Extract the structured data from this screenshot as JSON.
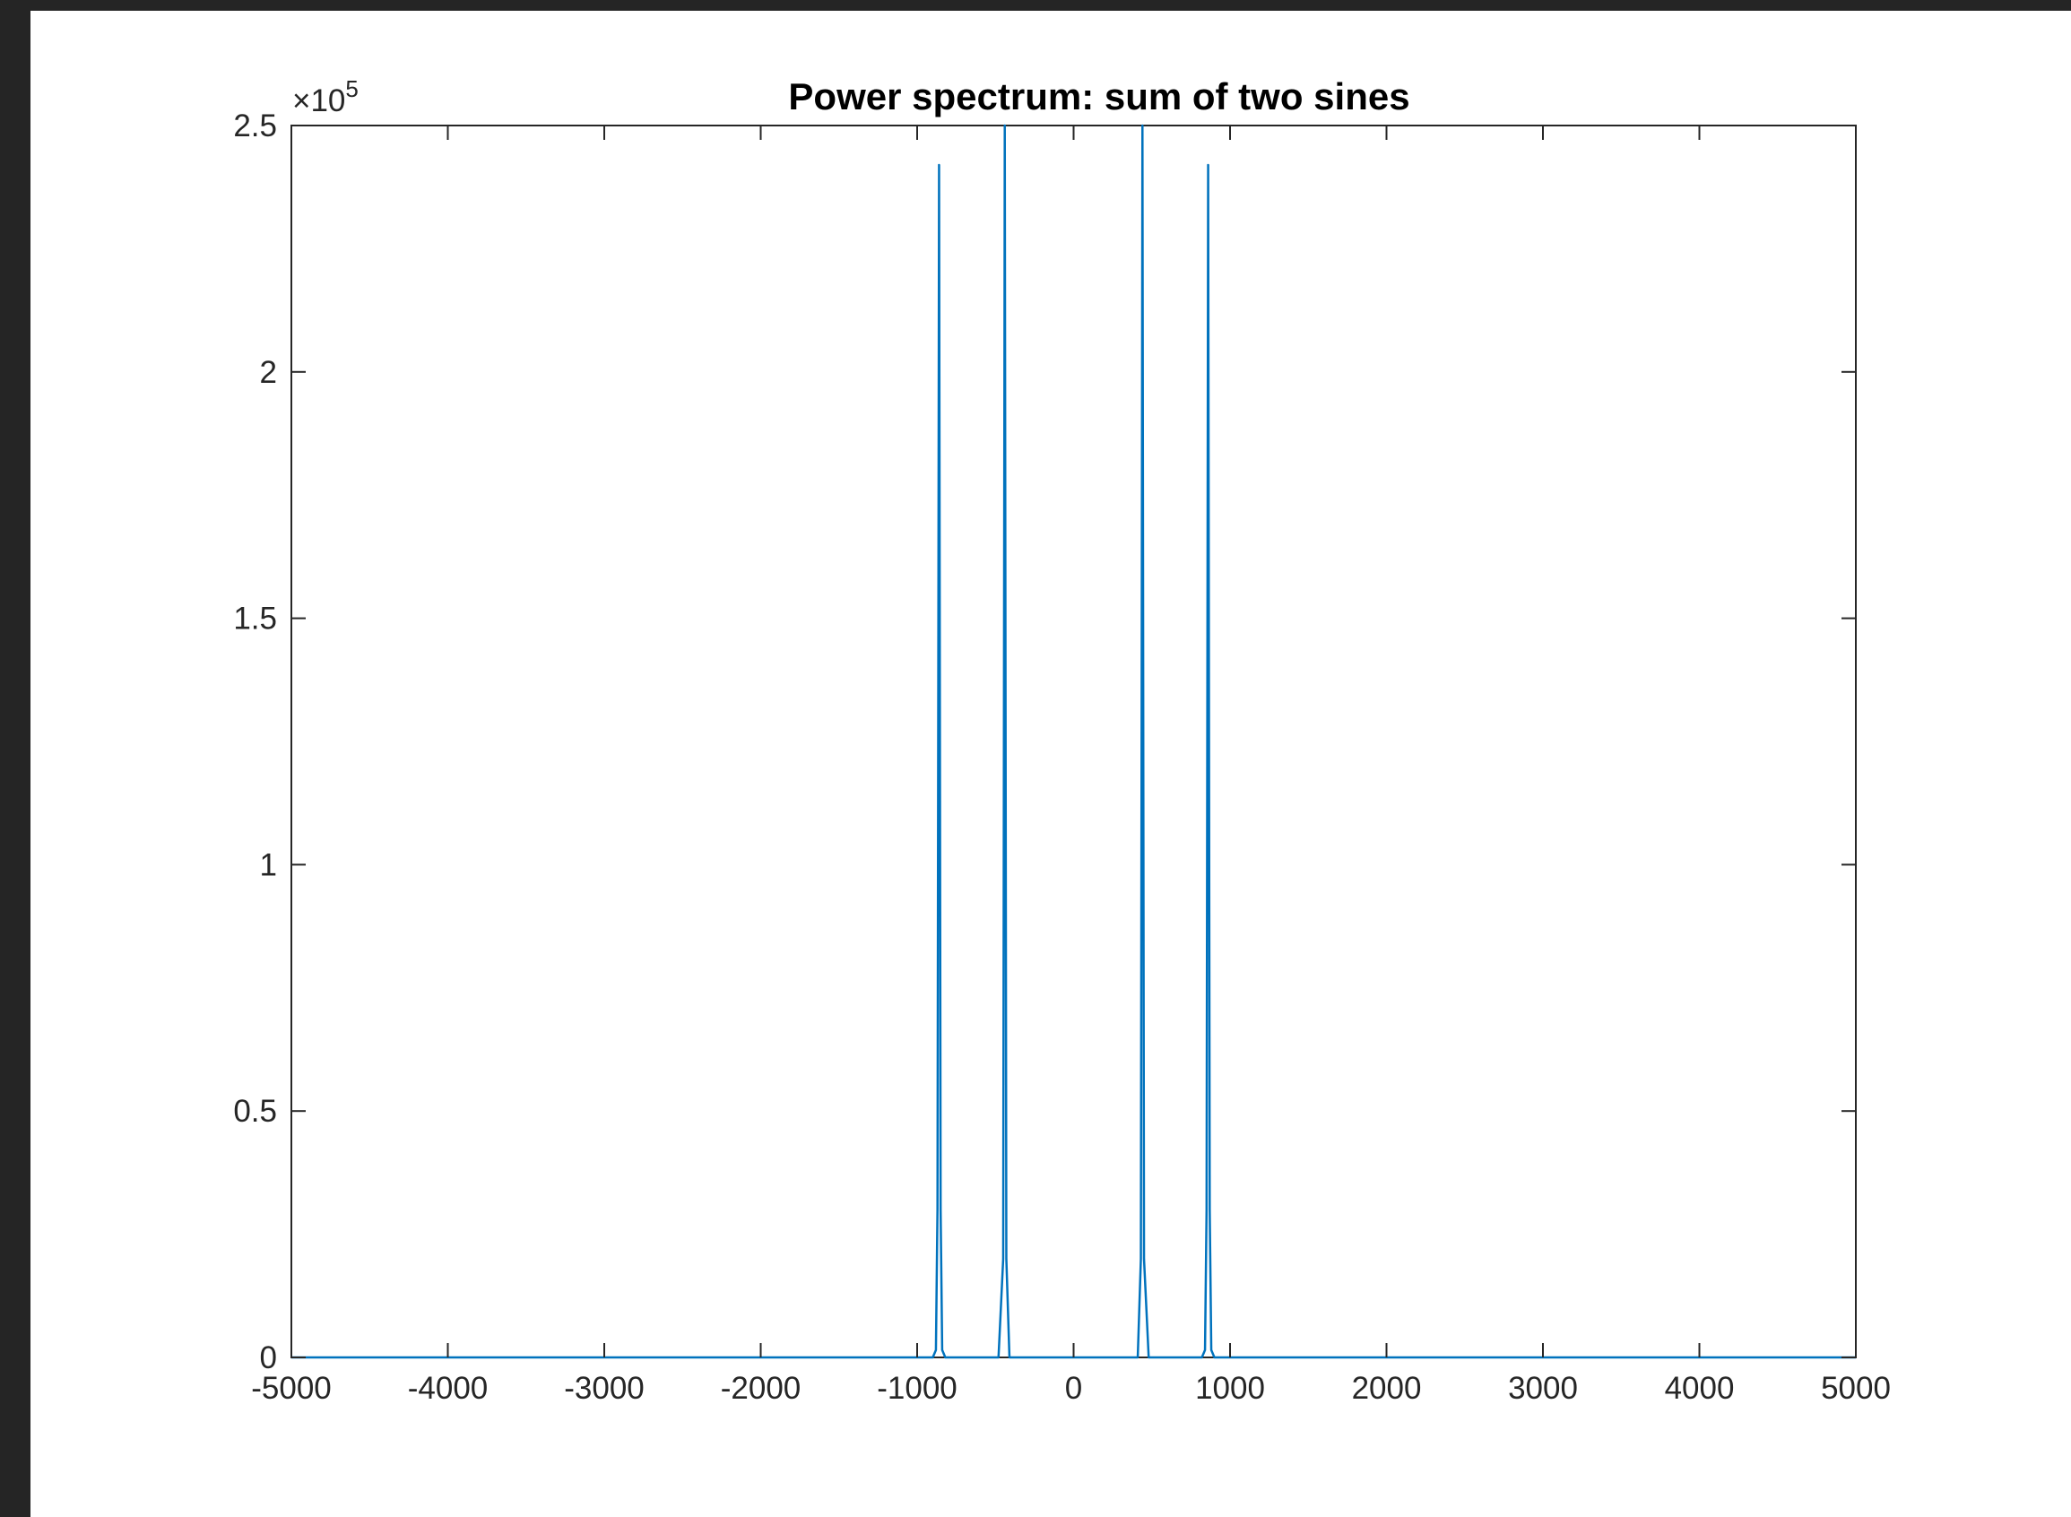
{
  "chart_data": {
    "type": "line",
    "title": "Power spectrum: sum of two sines",
    "xlabel": "",
    "ylabel": "",
    "xlim": [
      -5000,
      5000
    ],
    "ylim": [
      0,
      250000
    ],
    "y_exponent_label": "×10",
    "y_exponent_power": "5",
    "x_ticks": [
      -5000,
      -4000,
      -3000,
      -2000,
      -1000,
      0,
      1000,
      2000,
      3000,
      4000,
      5000
    ],
    "x_tick_labels": [
      "-5000",
      "-4000",
      "-3000",
      "-2000",
      "-1000",
      "0",
      "1000",
      "2000",
      "3000",
      "4000",
      "5000"
    ],
    "y_ticks": [
      0,
      50000,
      100000,
      150000,
      200000,
      250000
    ],
    "y_tick_labels": [
      "0",
      "0.5",
      "1",
      "1.5",
      "2",
      "2.5"
    ],
    "grid": false,
    "box": true,
    "series": [
      {
        "color": "#0072BD",
        "x": [
          -5000,
          -900,
          -880,
          -870,
          -860,
          -850,
          -840,
          -820,
          -480,
          -450,
          -440,
          -430,
          -410,
          410,
          430,
          440,
          450,
          480,
          820,
          840,
          850,
          860,
          870,
          880,
          900,
          5000
        ],
        "y": [
          0,
          0,
          1500,
          30000,
          242000,
          30000,
          1500,
          0,
          0,
          20000,
          250000,
          20000,
          0,
          0,
          20000,
          250000,
          20000,
          0,
          0,
          1500,
          30000,
          242000,
          30000,
          1500,
          0,
          0
        ]
      }
    ]
  }
}
